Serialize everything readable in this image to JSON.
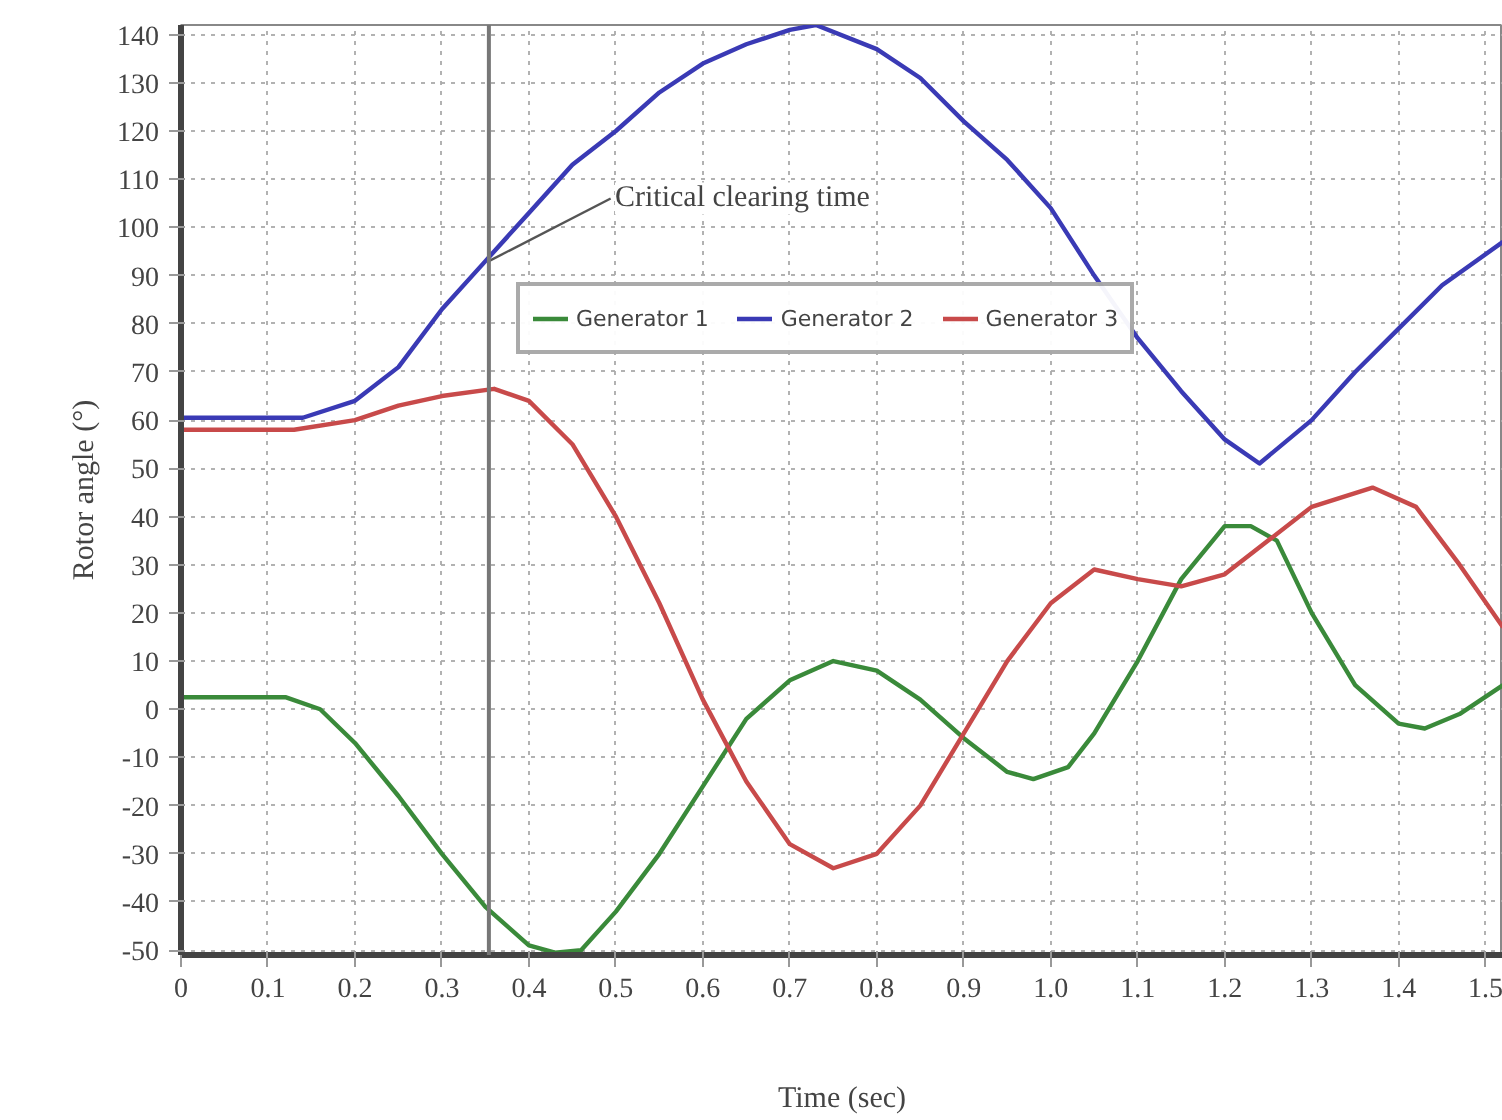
{
  "chart_data": {
    "type": "line",
    "xlabel": "Time (sec)",
    "ylabel": "Rotor angle (°)",
    "xlim": [
      0,
      1.52
    ],
    "ylim": [
      -51,
      142
    ],
    "xticks": [
      0,
      0.1,
      0.2,
      0.3,
      0.4,
      0.5,
      0.6,
      0.7,
      0.8,
      0.9,
      {
        "value": 1,
        "label": "1.0"
      },
      1.1,
      1.2,
      1.3,
      1.4,
      1.5
    ],
    "yticks": [
      -50,
      -40,
      -30,
      -20,
      -10,
      0,
      10,
      20,
      30,
      40,
      50,
      60,
      70,
      80,
      90,
      100,
      110,
      120,
      130,
      140
    ],
    "grid": true,
    "legend": "top",
    "line_style": "solid",
    "marker": "none",
    "ref_lines": [
      {
        "axis": "x",
        "value": 0.354,
        "color": "#777777"
      }
    ],
    "annotations": [
      {
        "text": "Critical clearing time",
        "x": 0.354,
        "y": 93
      }
    ],
    "series": [
      {
        "name": "Generator 1",
        "color": "#3a8a3a",
        "x": [
          0,
          0.12,
          0.16,
          0.2,
          0.25,
          0.3,
          0.35,
          0.4,
          0.43,
          0.46,
          0.5,
          0.55,
          0.6,
          0.65,
          0.7,
          0.75,
          0.8,
          0.85,
          0.9,
          0.95,
          0.98,
          1.02,
          1.05,
          1.1,
          1.15,
          1.2,
          1.23,
          1.26,
          1.3,
          1.35,
          1.4,
          1.43,
          1.47,
          1.52
        ],
        "values": [
          2.5,
          2.5,
          0,
          -7,
          -18,
          -30,
          -41,
          -49,
          -50.5,
          -50,
          -42,
          -30,
          -16,
          -2,
          6,
          10,
          8,
          2,
          -6,
          -13,
          -14.5,
          -12,
          -5,
          10,
          27,
          38,
          38,
          35,
          20,
          5,
          -3,
          -4,
          -1,
          5
        ]
      },
      {
        "name": "Generator 2",
        "color": "#3a3ab5",
        "x": [
          0,
          0.14,
          0.2,
          0.25,
          0.3,
          0.35,
          0.4,
          0.45,
          0.5,
          0.55,
          0.6,
          0.65,
          0.7,
          0.73,
          0.8,
          0.85,
          0.9,
          0.95,
          1.0,
          1.05,
          1.1,
          1.15,
          1.2,
          1.24,
          1.3,
          1.35,
          1.4,
          1.45,
          1.52
        ],
        "values": [
          60.5,
          60.5,
          64,
          71,
          83,
          93,
          103,
          113,
          120,
          128,
          134,
          138,
          141,
          142,
          137,
          131,
          122,
          114,
          104,
          90,
          77,
          66,
          56,
          51,
          60,
          70,
          79,
          88,
          97
        ]
      },
      {
        "name": "Generator 3",
        "color": "#c84a4a",
        "x": [
          0,
          0.13,
          0.2,
          0.25,
          0.3,
          0.36,
          0.4,
          0.45,
          0.5,
          0.55,
          0.6,
          0.65,
          0.7,
          0.75,
          0.8,
          0.85,
          0.9,
          0.95,
          1.0,
          1.05,
          1.1,
          1.15,
          1.2,
          1.25,
          1.3,
          1.37,
          1.42,
          1.47,
          1.52
        ],
        "values": [
          58,
          58,
          60,
          63,
          65,
          66.5,
          64,
          55,
          40,
          22,
          2,
          -15,
          -28,
          -33,
          -30,
          -20,
          -5,
          10,
          22,
          29,
          27,
          25.5,
          28,
          35,
          42,
          46,
          42,
          30,
          17
        ]
      }
    ]
  }
}
